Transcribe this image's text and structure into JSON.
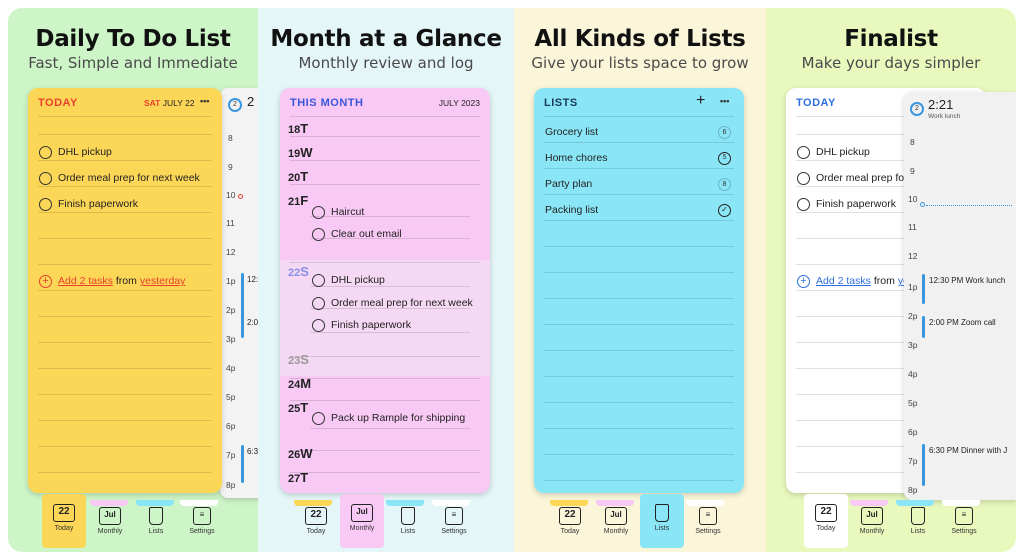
{
  "panels": [
    {
      "headline": "Daily To Do List",
      "subtitle": "Fast, Simple and Immediate",
      "card": {
        "header_left": "TODAY",
        "header_day": "SAT",
        "header_date": "JULY 22",
        "menu": "•••",
        "tasks": [
          "DHL pickup",
          "Order meal prep for next week",
          "Finish paperwork"
        ],
        "add_prefix": "Add 2 tasks",
        "add_mid": "from",
        "add_link": "yesterday"
      },
      "sidebar": {
        "clock": "2",
        "times": [
          "8",
          "9",
          "10",
          "11",
          "12",
          "1p",
          "2p",
          "3p",
          "4p",
          "5p",
          "6p",
          "7p",
          "8p"
        ],
        "events": [
          "12:3",
          "2:0",
          "6:3"
        ]
      }
    },
    {
      "headline": "Month at a Glance",
      "subtitle": "Monthly review and log",
      "card": {
        "header_left": "THIS MONTH",
        "header_right": "JULY 2023",
        "days": [
          {
            "num": "18",
            "letter": "T"
          },
          {
            "num": "19",
            "letter": "W"
          },
          {
            "num": "20",
            "letter": "T"
          },
          {
            "num": "21",
            "letter": "F"
          },
          {
            "num": "22",
            "letter": "S"
          },
          {
            "num": "23",
            "letter": "S"
          },
          {
            "num": "24",
            "letter": "M"
          },
          {
            "num": "25",
            "letter": "T"
          },
          {
            "num": "26",
            "letter": "W"
          },
          {
            "num": "27",
            "letter": "T"
          }
        ],
        "tasks21": [
          "Haircut",
          "Clear out email"
        ],
        "tasks22": [
          "DHL pickup",
          "Order meal prep for next week",
          "Finish paperwork"
        ],
        "tasks25": [
          "Pack up Rample for shipping"
        ]
      }
    },
    {
      "headline": "All Kinds of Lists",
      "subtitle": "Give your lists space to grow",
      "card": {
        "header_left": "LISTS",
        "plus": "+",
        "menu": "•••",
        "lists": [
          {
            "name": "Grocery list",
            "count": "6"
          },
          {
            "name": "Home chores",
            "count": "5"
          },
          {
            "name": "Party plan",
            "count": "8"
          },
          {
            "name": "Packing list",
            "count": "✓"
          }
        ]
      }
    },
    {
      "headline": "Finalist",
      "subtitle": "Make your days simpler",
      "card": {
        "header_left": "TODAY",
        "tasks": [
          "DHL pickup",
          "Order meal prep for",
          "Finish paperwork"
        ],
        "add_prefix": "Add 2 tasks",
        "add_mid": "from",
        "add_link": "ye"
      },
      "sidebar": {
        "clock": "2",
        "time": "2:21",
        "caption": "Work lunch",
        "times": [
          "8",
          "9",
          "10",
          "11",
          "12",
          "1p",
          "2p",
          "3p",
          "4p",
          "5p",
          "6p",
          "7p",
          "8p"
        ],
        "events": [
          "12:30 PM Work lunch",
          "2:00 PM Zoom call",
          "6:30 PM Dinner with J"
        ]
      }
    }
  ],
  "tabs": {
    "today_num": "22",
    "today_label": "Today",
    "monthly_icon": "Jul",
    "monthly_label": "Monthly",
    "lists_label": "Lists",
    "settings_label": "Settings"
  },
  "colors": {
    "today_red": "#e8412f",
    "month_blue": "#3b55d9",
    "link_blue": "#2d6fe0",
    "yellow_card": "#fcd757",
    "pink_card": "#f8c9f4",
    "cyan_card": "#8ae6f7"
  }
}
